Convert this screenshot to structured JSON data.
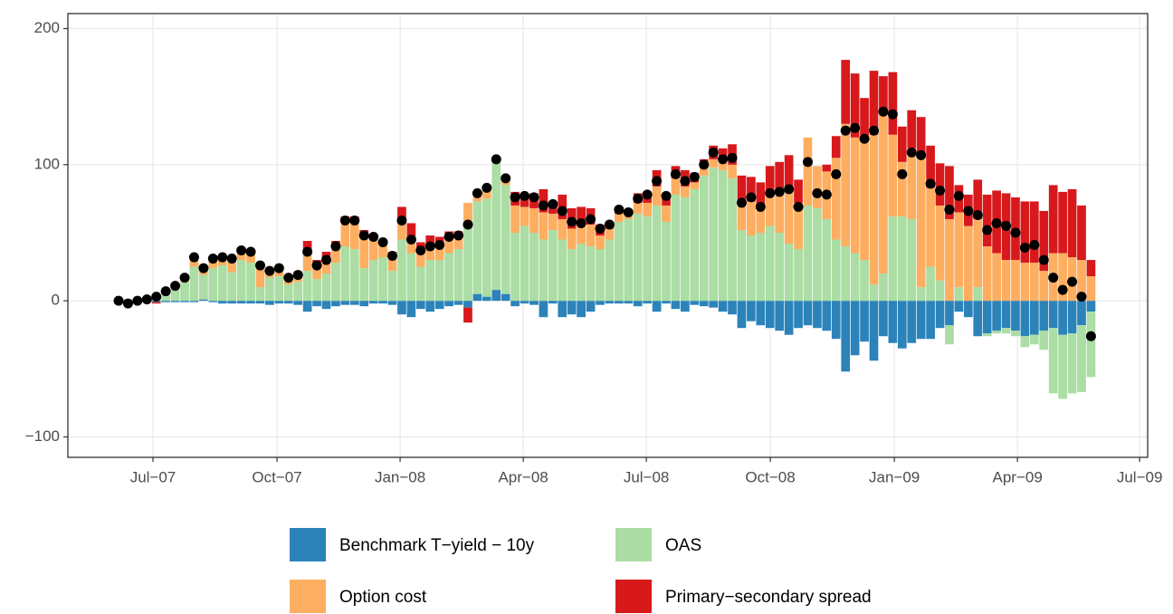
{
  "chart_data": {
    "type": "stacked-bar-with-points",
    "categories": [
      null,
      null,
      null,
      null,
      null,
      null,
      null,
      null,
      null,
      null,
      null,
      null,
      null,
      null,
      null,
      null,
      null,
      null,
      null,
      null,
      null,
      null,
      null,
      null,
      null,
      null,
      null,
      null,
      null,
      null,
      null,
      null,
      null,
      null,
      null,
      null,
      null,
      null,
      null,
      null,
      null,
      null,
      null,
      null,
      null,
      null,
      null,
      null,
      null,
      null,
      null,
      null,
      null,
      null,
      null,
      null,
      null,
      null,
      null,
      null,
      null,
      null,
      null,
      null,
      null,
      null,
      null,
      null,
      null,
      null,
      null,
      null,
      null,
      null,
      null,
      null,
      null,
      null,
      null,
      null,
      null,
      null,
      null,
      null,
      null,
      null,
      null,
      null,
      null,
      null,
      null,
      null,
      null,
      null,
      null,
      null,
      null,
      null,
      null,
      null,
      null,
      null,
      null,
      null
    ],
    "series": [
      {
        "name": "Benchmark T−yield − 10y",
        "color": "#2b83ba",
        "values": [
          -1,
          -3,
          -1,
          -1,
          -1,
          -1,
          -1,
          -1,
          -1,
          1,
          -1,
          -2,
          -2,
          -2,
          -2,
          -2,
          -3,
          -2,
          -2,
          -3,
          -8,
          -4,
          -6,
          -4,
          -3,
          -3,
          -4,
          -2,
          -2,
          -3,
          -10,
          -12,
          -6,
          -8,
          -6,
          -4,
          -3,
          -5,
          5,
          3,
          8,
          5,
          -4,
          -2,
          -3,
          -12,
          -2,
          -12,
          -10,
          -12,
          -8,
          -3,
          -2,
          -2,
          -2,
          -4,
          -2,
          -8,
          -2,
          -6,
          -8,
          -3,
          -4,
          -5,
          -8,
          -10,
          -20,
          -15,
          -18,
          -20,
          -22,
          -25,
          -20,
          -18,
          -20,
          -22,
          -28,
          -52,
          -40,
          -30,
          -44,
          -26,
          -31,
          -35,
          -31,
          -28,
          -28,
          -20,
          -18,
          -8,
          -12,
          -26,
          -24,
          -22,
          -20,
          -22,
          -26,
          -25,
          -22,
          -20,
          -25,
          -24,
          -18,
          -8
        ]
      },
      {
        "name": "OAS",
        "color": "#abdda4",
        "values": [
          1,
          0,
          0,
          1,
          3,
          5,
          9,
          14,
          25,
          18,
          24,
          26,
          21,
          30,
          28,
          10,
          17,
          18,
          12,
          14,
          22,
          16,
          20,
          28,
          40,
          38,
          24,
          30,
          32,
          22,
          45,
          35,
          25,
          30,
          30,
          35,
          38,
          58,
          68,
          72,
          95,
          80,
          50,
          55,
          50,
          45,
          52,
          45,
          38,
          42,
          40,
          38,
          45,
          58,
          60,
          64,
          62,
          70,
          58,
          78,
          76,
          82,
          92,
          98,
          96,
          90,
          52,
          48,
          50,
          55,
          50,
          42,
          38,
          70,
          68,
          60,
          45,
          40,
          35,
          30,
          12,
          20,
          62,
          62,
          60,
          10,
          25,
          15,
          -14,
          10,
          0,
          10,
          -2,
          -2,
          -4,
          -4,
          -8,
          -7,
          -14,
          -48,
          -47,
          -44,
          -49,
          -48
        ]
      },
      {
        "name": "Option cost",
        "color": "#fdae61",
        "values": [
          0,
          1,
          1,
          1,
          2,
          3,
          3,
          4,
          7,
          5,
          8,
          8,
          12,
          9,
          10,
          18,
          8,
          8,
          6,
          8,
          12,
          12,
          12,
          14,
          18,
          20,
          22,
          15,
          11,
          12,
          12,
          12,
          10,
          10,
          12,
          12,
          10,
          14,
          6,
          8,
          1,
          5,
          20,
          14,
          18,
          20,
          12,
          15,
          15,
          14,
          16,
          10,
          8,
          6,
          4,
          8,
          10,
          14,
          12,
          12,
          8,
          5,
          6,
          6,
          8,
          10,
          20,
          25,
          20,
          22,
          30,
          40,
          34,
          50,
          31,
          35,
          60,
          90,
          85,
          88,
          110,
          120,
          60,
          40,
          52,
          95,
          58,
          55,
          60,
          55,
          55,
          50,
          40,
          35,
          30,
          30,
          28,
          28,
          22,
          35,
          35,
          32,
          30,
          18
        ]
      },
      {
        "name": "Primary−secondary spread",
        "color": "#d7191c",
        "values": [
          0,
          0,
          0,
          0,
          -1,
          0,
          0,
          0,
          1,
          0,
          0,
          0,
          0,
          0,
          0,
          0,
          0,
          0,
          1,
          0,
          10,
          2,
          4,
          2,
          4,
          4,
          6,
          4,
          2,
          2,
          12,
          10,
          8,
          8,
          5,
          4,
          3,
          -11,
          0,
          0,
          0,
          0,
          10,
          10,
          11,
          17,
          9,
          18,
          15,
          13,
          12,
          8,
          5,
          5,
          3,
          7,
          8,
          12,
          9,
          9,
          12,
          7,
          6,
          10,
          8,
          15,
          20,
          18,
          17,
          22,
          22,
          25,
          17,
          0,
          0,
          5,
          16,
          47,
          47,
          31,
          47,
          25,
          46,
          26,
          28,
          30,
          31,
          31,
          39,
          20,
          23,
          29,
          38,
          46,
          49,
          46,
          45,
          45,
          44,
          50,
          45,
          50,
          40,
          12
        ]
      }
    ],
    "point_color": "#000000",
    "xlim": [
      -5.37,
      109.0
    ],
    "xticks": [
      {
        "value": 3.64,
        "label": "Jul−07"
      },
      {
        "value": 16.78,
        "label": "Oct−07"
      },
      {
        "value": 29.82,
        "label": "Jan−08"
      },
      {
        "value": 42.86,
        "label": "Apr−08"
      },
      {
        "value": 55.9,
        "label": "Jul−08"
      },
      {
        "value": 69.03,
        "label": "Oct−08"
      },
      {
        "value": 82.17,
        "label": "Jan−09"
      },
      {
        "value": 95.21,
        "label": "Apr−09"
      },
      {
        "value": 108.15,
        "label": "Jul−09"
      }
    ],
    "ylim": [
      -115,
      211
    ],
    "yticks": [
      {
        "value": -100,
        "label": "−100"
      },
      0,
      100,
      200
    ],
    "grid": true
  }
}
